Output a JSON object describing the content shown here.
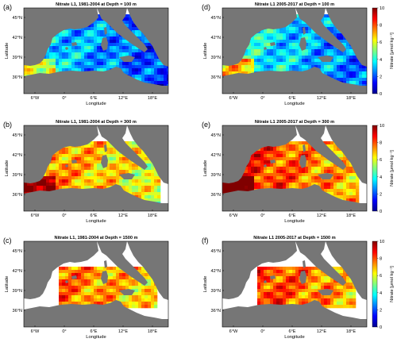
{
  "figure": {
    "panels": [
      {
        "letter": "(a)",
        "title": "Nitrate L1, 1981-2004 at Depth = 100 m",
        "depth_m": 100,
        "period": "1981-2004",
        "colorbar": false,
        "mean_level": 3
      },
      {
        "letter": "(d)",
        "title": "Nitrate L1 2005-2017 at Depth = 100 m",
        "depth_m": 100,
        "period": "2005-2017",
        "colorbar": true,
        "mean_level": 3.5
      },
      {
        "letter": "(b)",
        "title": "Nitrate L1, 1981-2004 at Depth = 300 m",
        "depth_m": 300,
        "period": "1981-2004",
        "colorbar": false,
        "mean_level": 7
      },
      {
        "letter": "(e)",
        "title": "Nitrate L1 2005-2017 at Depth = 300 m",
        "depth_m": 300,
        "period": "2005-2017",
        "colorbar": true,
        "mean_level": 8
      },
      {
        "letter": "(c)",
        "title": "Nitrate L1, 1981-2004 at Depth = 1500 m",
        "depth_m": 1500,
        "period": "1981-2004",
        "colorbar": false,
        "mean_level": 7.5
      },
      {
        "letter": "(f)",
        "title": "Nitrate L1 2005-2017 at Depth = 1500 m",
        "depth_m": 1500,
        "period": "2005-2017",
        "colorbar": true,
        "mean_level": 8
      }
    ],
    "axes": {
      "xlabel": "Longitude",
      "ylabel": "Latitude",
      "xticks": [
        "6°W",
        "0°",
        "6°E",
        "12°E",
        "18°E"
      ],
      "yticks": [
        "45°N",
        "42°N",
        "39°N",
        "36°N"
      ]
    },
    "colorbar": {
      "label": "Nitrate [μmol kg⁻¹]",
      "ticks": [
        "10",
        "8",
        "6",
        "4",
        "2",
        "0"
      ],
      "range": [
        0,
        10
      ],
      "colormap": "jet"
    },
    "colors": {
      "land": "#767676",
      "sea": "#ffffff",
      "jet_low": "#00008f",
      "jet_high": "#800000"
    }
  }
}
